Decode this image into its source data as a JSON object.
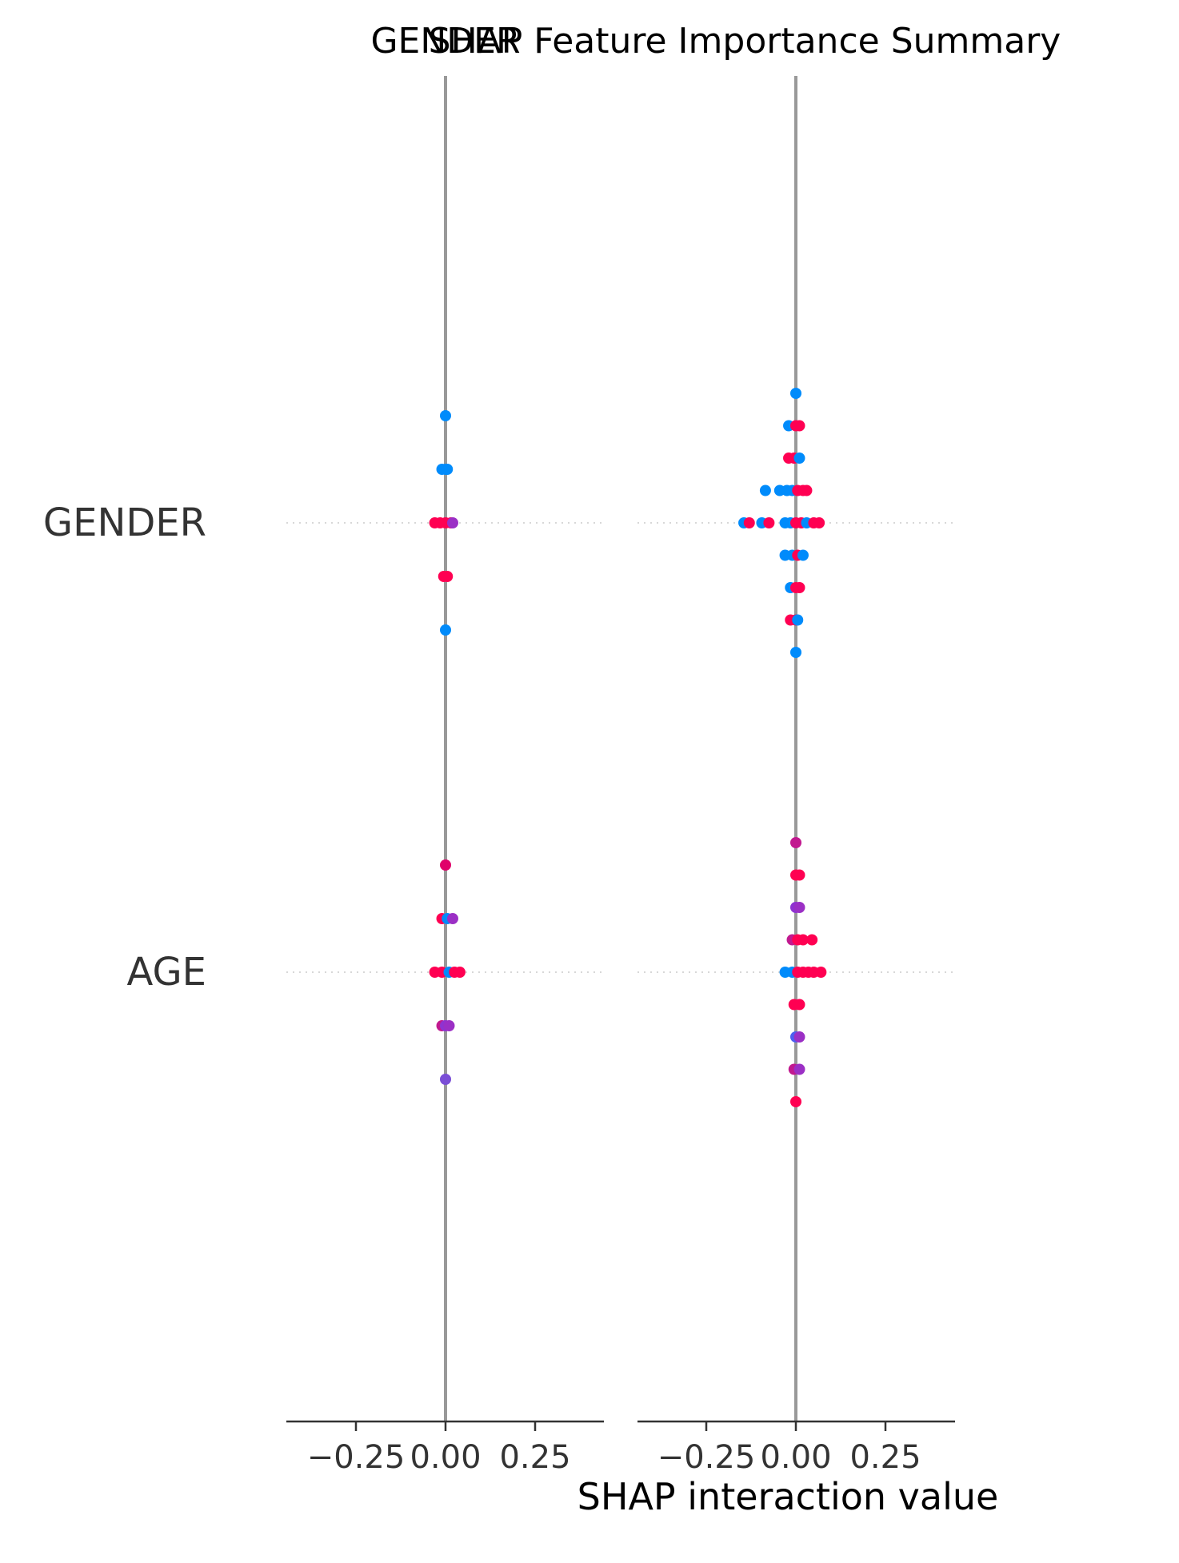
{
  "figure": {
    "title": "SHAP Feature Importance Summary",
    "xlabel": "SHAP interaction value"
  },
  "colors": {
    "axis": "#333333",
    "ticklabel": "#333333",
    "title": "#000000",
    "zero_line": "#999999",
    "gridline": "#cccccc",
    "low_feature_value": "#008bfb",
    "high_feature_value": "#ff0052",
    "mid_feature_value": "#9b2fc5"
  },
  "chart_data": [
    {
      "type": "scatter",
      "title": "GENDER",
      "xlabel": "",
      "xlim": [
        -0.48,
        0.43
      ],
      "xticks": [
        -0.25,
        0.0,
        0.25
      ],
      "xtick_labels": [
        "−0.25",
        "0.00",
        "0.25"
      ],
      "categories": [
        "GENDER",
        "AGE"
      ],
      "series": [
        {
          "row": "GENDER",
          "points": [
            {
              "x": 0.0,
              "dy": -2,
              "c": "#008bfb"
            },
            {
              "x": -0.01,
              "dy": -1,
              "c": "#008bfb"
            },
            {
              "x": 0.0,
              "dy": -1,
              "c": "#008bfb"
            },
            {
              "x": 0.005,
              "dy": -1,
              "c": "#008bfb"
            },
            {
              "x": -0.03,
              "dy": 0,
              "c": "#ff0052"
            },
            {
              "x": -0.015,
              "dy": 0,
              "c": "#ff0052"
            },
            {
              "x": 0.0,
              "dy": 0,
              "c": "#ff0052"
            },
            {
              "x": 0.015,
              "dy": 0,
              "c": "#ff0052"
            },
            {
              "x": 0.02,
              "dy": 0,
              "c": "#9b2fc5"
            },
            {
              "x": -0.005,
              "dy": 1,
              "c": "#ff0052"
            },
            {
              "x": 0.005,
              "dy": 1,
              "c": "#ff0052"
            },
            {
              "x": 0.0,
              "dy": 2,
              "c": "#008bfb"
            }
          ]
        },
        {
          "row": "AGE",
          "points": [
            {
              "x": 0.0,
              "dy": -2,
              "c": "#e0006a"
            },
            {
              "x": -0.01,
              "dy": -1,
              "c": "#ff0052"
            },
            {
              "x": 0.005,
              "dy": -1,
              "c": "#008bfb"
            },
            {
              "x": 0.02,
              "dy": -1,
              "c": "#9b2fc5"
            },
            {
              "x": -0.03,
              "dy": 0,
              "c": "#ff0052"
            },
            {
              "x": -0.01,
              "dy": 0,
              "c": "#ff0052"
            },
            {
              "x": 0.01,
              "dy": 0,
              "c": "#008bfb"
            },
            {
              "x": 0.025,
              "dy": 0,
              "c": "#ff0052"
            },
            {
              "x": 0.04,
              "dy": 0,
              "c": "#ff0052"
            },
            {
              "x": -0.01,
              "dy": 1,
              "c": "#c1198f"
            },
            {
              "x": 0.0,
              "dy": 1,
              "c": "#8e33d1"
            },
            {
              "x": 0.01,
              "dy": 1,
              "c": "#9b2fc5"
            },
            {
              "x": 0.0,
              "dy": 2,
              "c": "#7a4ed6"
            }
          ]
        }
      ]
    },
    {
      "type": "scatter",
      "title": "",
      "xlabel": "SHAP interaction value",
      "xlim": [
        -0.48,
        0.43
      ],
      "xticks": [
        -0.25,
        0.0,
        0.25
      ],
      "xtick_labels": [
        "−0.25",
        "0.00",
        "0.25"
      ],
      "categories": [
        "GENDER",
        "AGE"
      ],
      "series": [
        {
          "row": "GENDER",
          "points": [
            {
              "x": 0.0,
              "dy": -4,
              "c": "#008bfb"
            },
            {
              "x": -0.02,
              "dy": -3,
              "c": "#008bfb"
            },
            {
              "x": 0.0,
              "dy": -3,
              "c": "#ff0052"
            },
            {
              "x": 0.01,
              "dy": -3,
              "c": "#ff0052"
            },
            {
              "x": -0.02,
              "dy": -2,
              "c": "#ff0052"
            },
            {
              "x": -0.005,
              "dy": -2,
              "c": "#ff0052"
            },
            {
              "x": 0.01,
              "dy": -2,
              "c": "#008bfb"
            },
            {
              "x": -0.085,
              "dy": -1,
              "c": "#008bfb"
            },
            {
              "x": -0.045,
              "dy": -1,
              "c": "#008bfb"
            },
            {
              "x": -0.025,
              "dy": -1,
              "c": "#008bfb"
            },
            {
              "x": -0.01,
              "dy": -1,
              "c": "#008bfb"
            },
            {
              "x": 0.005,
              "dy": -1,
              "c": "#ff0052"
            },
            {
              "x": 0.02,
              "dy": -1,
              "c": "#ff0052"
            },
            {
              "x": 0.03,
              "dy": -1,
              "c": "#ff0052"
            },
            {
              "x": -0.145,
              "dy": 0,
              "c": "#008bfb"
            },
            {
              "x": -0.13,
              "dy": 0,
              "c": "#ff0052"
            },
            {
              "x": -0.095,
              "dy": 0,
              "c": "#008bfb"
            },
            {
              "x": -0.075,
              "dy": 0,
              "c": "#ff0052"
            },
            {
              "x": -0.03,
              "dy": 0,
              "c": "#008bfb"
            },
            {
              "x": -0.015,
              "dy": 0,
              "c": "#008bfb"
            },
            {
              "x": 0.0,
              "dy": 0,
              "c": "#ff0052"
            },
            {
              "x": 0.015,
              "dy": 0,
              "c": "#ff0052"
            },
            {
              "x": 0.03,
              "dy": 0,
              "c": "#008bfb"
            },
            {
              "x": 0.05,
              "dy": 0,
              "c": "#ff0052"
            },
            {
              "x": 0.065,
              "dy": 0,
              "c": "#ff0052"
            },
            {
              "x": -0.03,
              "dy": 1,
              "c": "#008bfb"
            },
            {
              "x": -0.01,
              "dy": 1,
              "c": "#008bfb"
            },
            {
              "x": 0.005,
              "dy": 1,
              "c": "#ff0052"
            },
            {
              "x": 0.02,
              "dy": 1,
              "c": "#008bfb"
            },
            {
              "x": -0.015,
              "dy": 2,
              "c": "#008bfb"
            },
            {
              "x": 0.0,
              "dy": 2,
              "c": "#ff0052"
            },
            {
              "x": 0.01,
              "dy": 2,
              "c": "#ff0052"
            },
            {
              "x": -0.015,
              "dy": 3,
              "c": "#ff0052"
            },
            {
              "x": 0.0,
              "dy": 3,
              "c": "#ff0052"
            },
            {
              "x": 0.005,
              "dy": 3,
              "c": "#008bfb"
            },
            {
              "x": 0.0,
              "dy": 4,
              "c": "#008bfb"
            }
          ]
        },
        {
          "row": "AGE",
          "points": [
            {
              "x": 0.0,
              "dy": -4,
              "c": "#c1198f"
            },
            {
              "x": 0.0,
              "dy": -3,
              "c": "#ff0052"
            },
            {
              "x": 0.01,
              "dy": -3,
              "c": "#ff0052"
            },
            {
              "x": 0.0,
              "dy": -2,
              "c": "#8e33d1"
            },
            {
              "x": 0.01,
              "dy": -2,
              "c": "#9b2fc5"
            },
            {
              "x": -0.01,
              "dy": -1,
              "c": "#c1198f"
            },
            {
              "x": 0.005,
              "dy": -1,
              "c": "#ff0052"
            },
            {
              "x": 0.02,
              "dy": -1,
              "c": "#ff0052"
            },
            {
              "x": 0.045,
              "dy": -1,
              "c": "#ff0052"
            },
            {
              "x": -0.03,
              "dy": 0,
              "c": "#008bfb"
            },
            {
              "x": -0.01,
              "dy": 0,
              "c": "#008bfb"
            },
            {
              "x": 0.005,
              "dy": 0,
              "c": "#ff0052"
            },
            {
              "x": 0.02,
              "dy": 0,
              "c": "#ff0052"
            },
            {
              "x": 0.035,
              "dy": 0,
              "c": "#ff0052"
            },
            {
              "x": 0.05,
              "dy": 0,
              "c": "#ff0052"
            },
            {
              "x": 0.07,
              "dy": 0,
              "c": "#ff0052"
            },
            {
              "x": -0.005,
              "dy": 1,
              "c": "#ff0052"
            },
            {
              "x": 0.01,
              "dy": 1,
              "c": "#ff0052"
            },
            {
              "x": 0.0,
              "dy": 2,
              "c": "#4d5ef0"
            },
            {
              "x": 0.01,
              "dy": 2,
              "c": "#9b2fc5"
            },
            {
              "x": -0.005,
              "dy": 3,
              "c": "#c1198f"
            },
            {
              "x": 0.01,
              "dy": 3,
              "c": "#9b2fc5"
            },
            {
              "x": 0.0,
              "dy": 4,
              "c": "#ff0052"
            }
          ]
        }
      ]
    }
  ]
}
